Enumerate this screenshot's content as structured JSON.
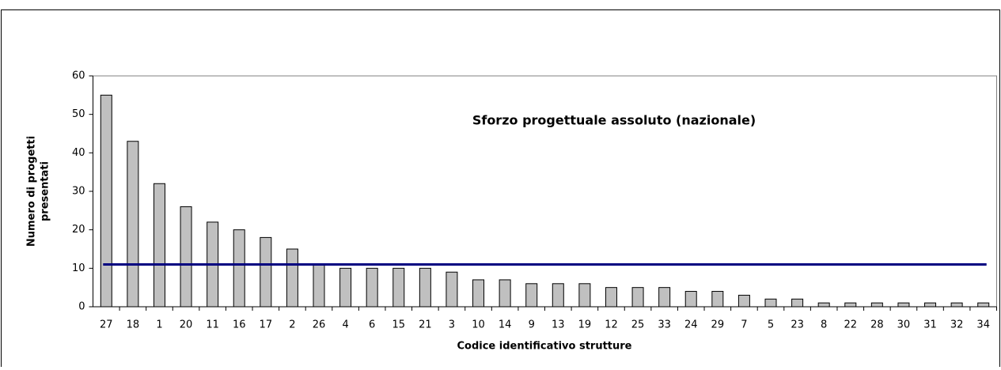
{
  "chart_data": {
    "type": "bar",
    "title": "Sforzo progettuale assoluto (nazionale)",
    "xlabel": "Codice identificativo strutture",
    "ylabel": [
      "Numero di progetti",
      "presentati"
    ],
    "categories": [
      "27",
      "18",
      "1",
      "20",
      "11",
      "16",
      "17",
      "2",
      "26",
      "4",
      "6",
      "15",
      "21",
      "3",
      "10",
      "14",
      "9",
      "13",
      "19",
      "12",
      "25",
      "33",
      "24",
      "29",
      "7",
      "5",
      "23",
      "8",
      "22",
      "28",
      "30",
      "31",
      "32",
      "34"
    ],
    "values": [
      55,
      43,
      32,
      26,
      22,
      20,
      18,
      15,
      11,
      10,
      10,
      10,
      10,
      9,
      7,
      7,
      6,
      6,
      6,
      5,
      5,
      5,
      4,
      4,
      3,
      2,
      2,
      1,
      1,
      1,
      1,
      1,
      1,
      1
    ],
    "color": "#c0c0c0",
    "hline": 11,
    "hline_color": "#000080",
    "ylim": [
      0,
      60
    ],
    "yticks": [
      0,
      10,
      20,
      30,
      40,
      50,
      60
    ],
    "grid": false
  }
}
